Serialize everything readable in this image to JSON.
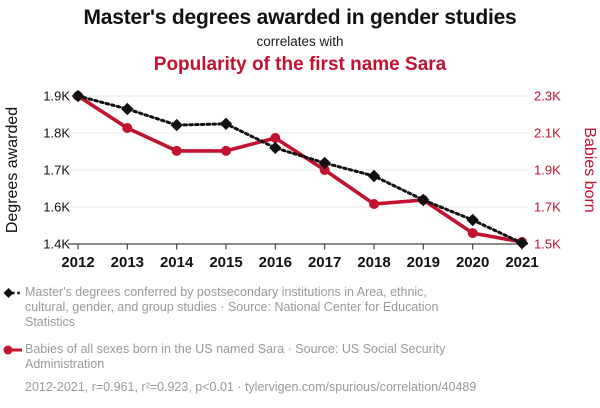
{
  "header": {
    "title": "Master's degrees awarded in gender studies",
    "connector": "correlates with",
    "subtitle": "Popularity of the first name Sara"
  },
  "chart_data": {
    "type": "line",
    "title": "Master's degrees awarded in gender studies correlates with Popularity of the first name Sara",
    "x": [
      2012,
      2013,
      2014,
      2015,
      2016,
      2017,
      2018,
      2019,
      2020,
      2021
    ],
    "x_ticks": [
      "2012",
      "2013",
      "2014",
      "2015",
      "2016",
      "2017",
      "2018",
      "2019",
      "2020",
      "2021"
    ],
    "series": [
      {
        "name": "Master's degrees conferred by postsecondary institutions in Area, ethnic, cultural, gender, and group studies",
        "axis": "left",
        "values": [
          1906,
          1865,
          1814,
          1818,
          1742,
          1694,
          1653,
          1577,
          1514,
          1441
        ],
        "color": "#111111",
        "style": "dotted",
        "marker": "diamond"
      },
      {
        "name": "Babies of all sexes born in the US named Sara",
        "axis": "right",
        "values": [
          2293,
          2120,
          1996,
          1996,
          2066,
          1893,
          1709,
          1731,
          1552,
          1504
        ],
        "color": "#c11230",
        "style": "solid",
        "marker": "circle"
      }
    ],
    "left_axis": {
      "label": "Degrees awarded",
      "ticks": [
        "1.9K",
        "1.8K",
        "1.7K",
        "1.6K",
        "1.4K"
      ],
      "range": [
        1438,
        1906
      ],
      "color": "#111111"
    },
    "right_axis": {
      "label": "Babies born",
      "ticks": [
        "2.3K",
        "2.1K",
        "1.9K",
        "1.7K",
        "1.5K"
      ],
      "range": [
        1493,
        2293
      ],
      "color": "#c11230"
    },
    "grid": "horizontal",
    "legend_position": "bottom"
  },
  "legend": {
    "items": [
      {
        "marker": "black-diamond-dotted",
        "text": "Master's degrees conferred by postsecondary institutions in Area, ethnic, cultural, gender, and group studies · Source: National Center for Education Statistics"
      },
      {
        "marker": "red-circle-solid",
        "text": "Babies of all sexes born in the US named Sara · Source: US Social Security Administration"
      }
    ]
  },
  "footer": {
    "stats_line": "2012-2021, r=0.961, r²=0.923, p<0.01 · tylervigen.com/spurious/correlation/40489"
  },
  "colors": {
    "accent_red": "#c11230",
    "text_gray": "#9a9a9a",
    "grid": "#e9e9e9",
    "axis": "#454545"
  }
}
